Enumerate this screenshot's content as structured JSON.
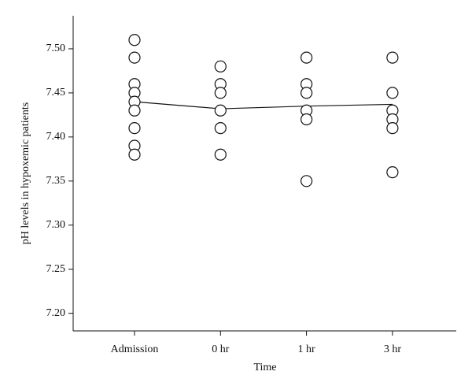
{
  "chart_data": {
    "type": "strip",
    "x_label": "Time",
    "y_label": "pH levels in hypoxemic patients",
    "categories": [
      "Admission",
      "0 hr",
      "1 hr",
      "3 hr"
    ],
    "points": [
      [
        7.51,
        7.49,
        7.46,
        7.45,
        7.44,
        7.43,
        7.41,
        7.39,
        7.38
      ],
      [
        7.48,
        7.46,
        7.45,
        7.43,
        7.41,
        7.38
      ],
      [
        7.49,
        7.46,
        7.45,
        7.43,
        7.42,
        7.35
      ],
      [
        7.49,
        7.45,
        7.43,
        7.42,
        7.41,
        7.36
      ]
    ],
    "line_values": [
      7.44,
      7.432,
      7.435,
      7.437
    ],
    "color": "#111111",
    "ylim": [
      7.18,
      7.5375
    ],
    "yticks": [
      {
        "value": 7.2,
        "label": "7.20"
      },
      7.25,
      {
        "value": 7.3,
        "label": "7.30"
      },
      7.35,
      {
        "value": 7.4,
        "label": "7.40"
      },
      7.45,
      {
        "value": 7.5,
        "label": "7.50"
      }
    ],
    "grid": false
  }
}
